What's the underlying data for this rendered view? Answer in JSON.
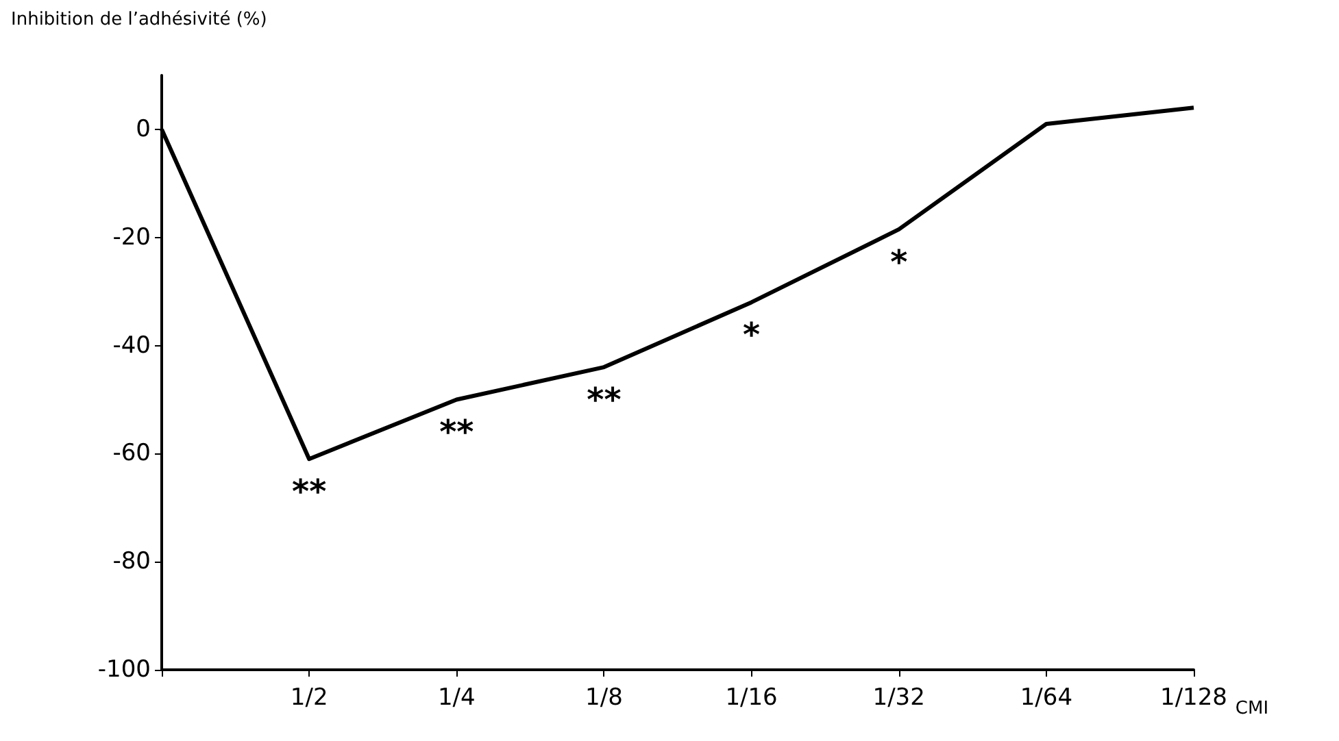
{
  "chart_data": {
    "type": "line",
    "xlabel": "CMI",
    "ylabel": "Inhibition de l’adhésivité (%)",
    "categories": [
      null,
      "1/2",
      "1/4",
      "1/8",
      "1/16",
      "1/32",
      "1/64",
      "1/128"
    ],
    "series": [
      {
        "color": "#000000",
        "values": [
          0,
          -61,
          -50,
          -44,
          -32,
          -18.5,
          1,
          4
        ]
      }
    ],
    "ylim": [
      -100,
      10
    ],
    "yticks": [
      0,
      -20,
      -40,
      -60,
      -80,
      -100
    ],
    "grid": false,
    "marker": "none",
    "line_style": "solid",
    "annotations": [
      {
        "text": "**",
        "x": "1/2",
        "y": -61
      },
      {
        "text": "**",
        "x": "1/4",
        "y": -50
      },
      {
        "text": "**",
        "x": "1/8",
        "y": -44
      },
      {
        "text": "*",
        "x": "1/16",
        "y": -32
      },
      {
        "text": "*",
        "x": "1/32",
        "y": -18.5
      }
    ]
  }
}
